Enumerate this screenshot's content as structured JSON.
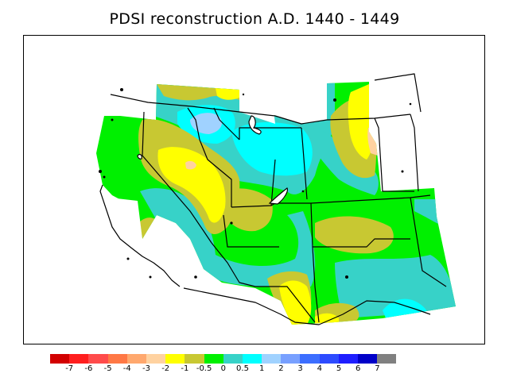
{
  "title": "PDSI reconstruction A.D. 1440 - 1449",
  "legend": {
    "colors": [
      "#d20000",
      "#ff1e1e",
      "#ff4b4b",
      "#ff7845",
      "#ffa86e",
      "#ffd2a0",
      "#ffff00",
      "#c8c832",
      "#00f000",
      "#37d2c8",
      "#00ffff",
      "#a0d2ff",
      "#78a0ff",
      "#3c6eff",
      "#2d4bff",
      "#1e1eff",
      "#0000c8",
      "#808080"
    ],
    "labels": [
      "-7",
      "-6",
      "-5",
      "-4",
      "-3",
      "-2",
      "-1",
      "-0.5",
      "0",
      "0.5",
      "1",
      "2",
      "3",
      "4",
      "5",
      "6",
      "7"
    ]
  },
  "chart_data": {
    "type": "heatmap",
    "title": "PDSI reconstruction A.D. 1440 - 1449",
    "region": "Western United States",
    "colorbar_levels": [
      -7,
      -6,
      -5,
      -4,
      -3,
      -2,
      -1,
      -0.5,
      0,
      0.5,
      1,
      2,
      3,
      4,
      5,
      6,
      7
    ],
    "colorbar_colors": [
      "#d20000",
      "#ff1e1e",
      "#ff4b4b",
      "#ff7845",
      "#ffa86e",
      "#ffd2a0",
      "#ffff00",
      "#c8c832",
      "#00f000",
      "#37d2c8",
      "#00ffff",
      "#a0d2ff",
      "#78a0ff",
      "#3c6eff",
      "#2d4bff",
      "#1e1eff",
      "#0000c8",
      "#808080"
    ],
    "legend_placement": "bottom"
  }
}
